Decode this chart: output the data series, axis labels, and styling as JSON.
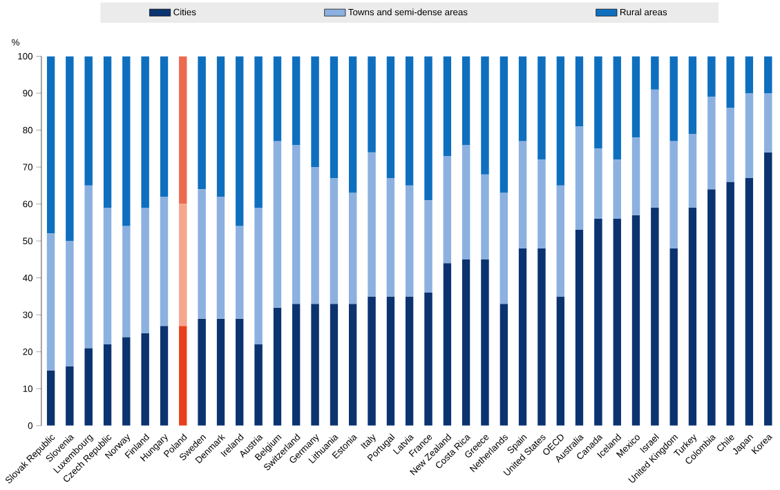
{
  "chart_data": {
    "type": "bar",
    "stacked": true,
    "ylabel": "%",
    "legend": "top",
    "ylim": [
      0,
      100
    ],
    "yticks": [
      0,
      10,
      20,
      30,
      40,
      50,
      60,
      70,
      80,
      90,
      100
    ],
    "categories": [
      "Slovak Republic",
      "Slovenia",
      "Luxembourg",
      "Czech Republic",
      "Norway",
      "Finland",
      "Hungary",
      "Poland",
      "Sweden",
      "Denmark",
      "Ireland",
      "Austria",
      "Belgium",
      "Switzerland",
      "Germany",
      "Lithuania",
      "Estonia",
      "Italy",
      "Portugal",
      "Latvia",
      "France",
      "New Zealand",
      "Costa Rica",
      "Greece",
      "Netherlands",
      "Spain",
      "United States",
      "OECD",
      "Australia",
      "Canada",
      "Iceland",
      "Mexico",
      "Israel",
      "United Kingdom",
      "Turkey",
      "Colombia",
      "Chile",
      "Japan",
      "Korea"
    ],
    "series": [
      {
        "name": "Cities",
        "color": "#0b3370",
        "colors": [
          "#0b3370",
          "#0b3370",
          "#0b3370",
          "#0b3370",
          "#0b3370",
          "#0b3370",
          "#0b3370",
          "#e8401c",
          "#0b3370",
          "#0b3370",
          "#0b3370",
          "#0b3370",
          "#0b3370",
          "#0b3370",
          "#0b3370",
          "#0b3370",
          "#0b3370",
          "#0b3370",
          "#0b3370",
          "#0b3370",
          "#0b3370",
          "#0b3370",
          "#0b3370",
          "#0b3370",
          "#0b3370",
          "#0b3370",
          "#0b3370",
          "#0b3370",
          "#0b3370",
          "#0b3370",
          "#0b3370",
          "#0b3370",
          "#0b3370",
          "#0b3370",
          "#0b3370",
          "#0b3370",
          "#0b3370",
          "#0b3370",
          "#0b3370"
        ],
        "values": [
          15,
          16,
          21,
          22,
          24,
          25,
          27,
          27,
          29,
          29,
          29,
          22,
          32,
          33,
          33,
          33,
          33,
          35,
          35,
          35,
          36,
          44,
          45,
          45,
          33,
          48,
          48,
          35,
          53,
          56,
          56,
          57,
          59,
          48,
          59,
          64,
          66,
          67,
          74
        ]
      },
      {
        "name": "Towns and semi-dense areas",
        "color": "#8cb1e0",
        "colors": [
          "#8cb1e0",
          "#8cb1e0",
          "#8cb1e0",
          "#8cb1e0",
          "#8cb1e0",
          "#8cb1e0",
          "#8cb1e0",
          "#f6a68c",
          "#8cb1e0",
          "#8cb1e0",
          "#8cb1e0",
          "#8cb1e0",
          "#8cb1e0",
          "#8cb1e0",
          "#8cb1e0",
          "#8cb1e0",
          "#8cb1e0",
          "#8cb1e0",
          "#8cb1e0",
          "#8cb1e0",
          "#8cb1e0",
          "#8cb1e0",
          "#8cb1e0",
          "#8cb1e0",
          "#8cb1e0",
          "#8cb1e0",
          "#8cb1e0",
          "#8cb1e0",
          "#8cb1e0",
          "#8cb1e0",
          "#8cb1e0",
          "#8cb1e0",
          "#8cb1e0",
          "#8cb1e0",
          "#8cb1e0",
          "#8cb1e0",
          "#8cb1e0",
          "#8cb1e0",
          "#8cb1e0"
        ],
        "values": [
          37,
          34,
          44,
          37,
          30,
          34,
          35,
          33,
          35,
          33,
          25,
          37,
          45,
          43,
          37,
          34,
          30,
          39,
          32,
          30,
          25,
          29,
          31,
          23,
          30,
          29,
          24,
          30,
          28,
          19,
          16,
          21,
          32,
          29,
          20,
          25,
          20,
          23,
          16
        ]
      },
      {
        "name": "Rural areas",
        "color": "#0f6fbf",
        "colors": [
          "#0f6fbf",
          "#0f6fbf",
          "#0f6fbf",
          "#0f6fbf",
          "#0f6fbf",
          "#0f6fbf",
          "#0f6fbf",
          "#ec6a4f",
          "#0f6fbf",
          "#0f6fbf",
          "#0f6fbf",
          "#0f6fbf",
          "#0f6fbf",
          "#0f6fbf",
          "#0f6fbf",
          "#0f6fbf",
          "#0f6fbf",
          "#0f6fbf",
          "#0f6fbf",
          "#0f6fbf",
          "#0f6fbf",
          "#0f6fbf",
          "#0f6fbf",
          "#0f6fbf",
          "#0f6fbf",
          "#0f6fbf",
          "#0f6fbf",
          "#0f6fbf",
          "#0f6fbf",
          "#0f6fbf",
          "#0f6fbf",
          "#0f6fbf",
          "#0f6fbf",
          "#0f6fbf",
          "#0f6fbf",
          "#0f6fbf",
          "#0f6fbf",
          "#0f6fbf",
          "#0f6fbf"
        ],
        "values": [
          48,
          50,
          35,
          41,
          46,
          41,
          38,
          40,
          36,
          38,
          46,
          41,
          23,
          24,
          30,
          33,
          37,
          26,
          33,
          35,
          39,
          27,
          24,
          32,
          37,
          23,
          28,
          35,
          19,
          25,
          28,
          22,
          9,
          23,
          21,
          11,
          14,
          10,
          10
        ]
      }
    ]
  }
}
